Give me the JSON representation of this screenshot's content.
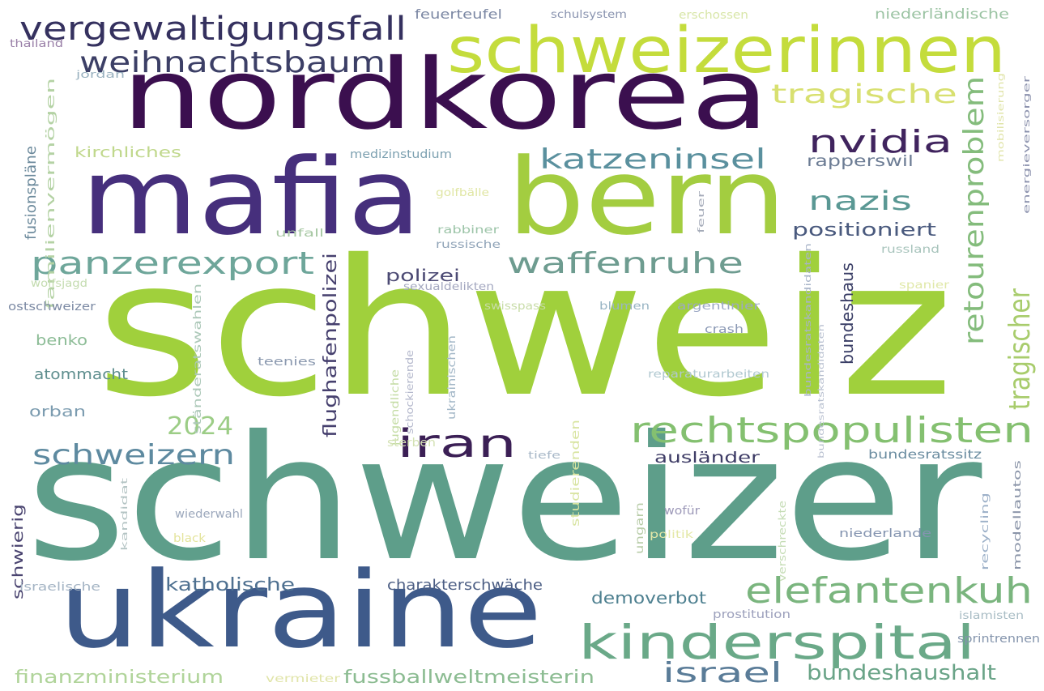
{
  "words": [
    {
      "text": "schweiz",
      "color": "#a0d03c"
    },
    {
      "text": "schweizer",
      "color": "#5e9e8a"
    },
    {
      "text": "nordkorea",
      "color": "#3b0f4f"
    },
    {
      "text": "mafia",
      "color": "#462f7c"
    },
    {
      "text": "bern",
      "color": "#a3cd40"
    },
    {
      "text": "ukraine",
      "color": "#3e5a8a"
    },
    {
      "text": "schweizerinnen",
      "color": "#c4dc3c"
    },
    {
      "text": "kinderspital",
      "color": "#6aa988"
    },
    {
      "text": "vergewaltigungsfall",
      "color": "#35315f"
    },
    {
      "text": "elefantenkuh",
      "color": "#7ab57e"
    },
    {
      "text": "rechtspopulisten",
      "color": "#84c070"
    },
    {
      "text": "weihnachtsbaum",
      "color": "#3c3f66"
    },
    {
      "text": "panzerexport",
      "color": "#6ea69a"
    },
    {
      "text": "waffenruhe",
      "color": "#6e9c90"
    },
    {
      "text": "iran",
      "color": "#3b1f55"
    },
    {
      "text": "schweizern",
      "color": "#5e8aa0"
    },
    {
      "text": "retourenproblem",
      "color": "#84bc7c"
    },
    {
      "text": "tragische",
      "color": "#d8e070"
    },
    {
      "text": "nvidia",
      "color": "#40245e"
    },
    {
      "text": "katzeninsel",
      "color": "#5a909e"
    },
    {
      "text": "nazis",
      "color": "#5a9894"
    },
    {
      "text": "tragischer",
      "color": "#a8cc6c"
    },
    {
      "text": "israel",
      "color": "#5a7c98"
    },
    {
      "text": "bundeshaushalt",
      "color": "#6aa488"
    },
    {
      "text": "2024",
      "color": "#9ccd86"
    },
    {
      "text": "fussballweltmeisterin",
      "color": "#8cbc92"
    },
    {
      "text": "finanzministerium",
      "color": "#b0d49a"
    },
    {
      "text": "katholische",
      "color": "#4e7090"
    },
    {
      "text": "charakterschwäche",
      "color": "#4c5e84"
    },
    {
      "text": "demoverbot",
      "color": "#4e8090"
    },
    {
      "text": "flughafenpolizei",
      "color": "#46406e"
    },
    {
      "text": "bundeshaus",
      "color": "#3a3e66"
    },
    {
      "text": "positioniert",
      "color": "#4a5a7e"
    },
    {
      "text": "polizei",
      "color": "#4c4a74"
    },
    {
      "text": "rapperswil",
      "color": "#6c7c94"
    },
    {
      "text": "ausländer",
      "color": "#3e3c66"
    },
    {
      "text": "kirchliches",
      "color": "#c0d88c"
    },
    {
      "text": "fusionspläne",
      "color": "#6c8a9c"
    },
    {
      "text": "medizinstudium",
      "color": "#7ca0b0"
    },
    {
      "text": "atommacht",
      "color": "#5e8e8e"
    },
    {
      "text": "benko",
      "color": "#8cbc96"
    },
    {
      "text": "orban",
      "color": "#7c9cb0"
    },
    {
      "text": "schwierig",
      "color": "#4a4470"
    },
    {
      "text": "bundesratssitz",
      "color": "#6a8ca0"
    },
    {
      "text": "feuerteufel",
      "color": "#7c88a4"
    },
    {
      "text": "schulsystem",
      "color": "#8a94b0"
    },
    {
      "text": "erschossen",
      "color": "#d8e6a8"
    },
    {
      "text": "niederländische",
      "color": "#9cc4a4"
    },
    {
      "text": "thailand",
      "color": "#9a80a8"
    },
    {
      "text": "jordan",
      "color": "#9ab2c0"
    },
    {
      "text": "familienvermögen",
      "color": "#b4d2a4"
    },
    {
      "text": "golfbälle",
      "color": "#e0e6a4"
    },
    {
      "text": "rabbiner",
      "color": "#9cc4a8"
    },
    {
      "text": "unfall",
      "color": "#a8c8a4"
    },
    {
      "text": "russische",
      "color": "#90a4b8"
    },
    {
      "text": "sexualdelikten",
      "color": "#a4a8c0"
    },
    {
      "text": "feuer",
      "color": "#a4aab8"
    },
    {
      "text": "wolfsjagd",
      "color": "#c4dcb0"
    },
    {
      "text": "ostschweizer",
      "color": "#7c8aa4"
    },
    {
      "text": "swisspass",
      "color": "#c8dca8"
    },
    {
      "text": "blumen",
      "color": "#98b4c4"
    },
    {
      "text": "argentinier",
      "color": "#9ca8c4"
    },
    {
      "text": "russland",
      "color": "#a8c4bc"
    },
    {
      "text": "spanier",
      "color": "#e0e8a8"
    },
    {
      "text": "crash",
      "color": "#8a98b4"
    },
    {
      "text": "teenies",
      "color": "#8c9ab0"
    },
    {
      "text": "reparaturarbeiten",
      "color": "#b0c8d0"
    },
    {
      "text": "ständeratswahlen",
      "color": "#acc8b8"
    },
    {
      "text": "jugendliche",
      "color": "#c4dca4"
    },
    {
      "text": "schockierende",
      "color": "#b4b8cc"
    },
    {
      "text": "ukrainischen",
      "color": "#a4b8c8"
    },
    {
      "text": "sterben",
      "color": "#d4e2b4"
    },
    {
      "text": "tiefe",
      "color": "#a8b8c8"
    },
    {
      "text": "studierenden",
      "color": "#d8e4a0"
    },
    {
      "text": "wofür",
      "color": "#9c98b8"
    },
    {
      "text": "ungarn",
      "color": "#b8cca8"
    },
    {
      "text": "politik",
      "color": "#e4e8a8"
    },
    {
      "text": "wiederwahl",
      "color": "#9ca8bc"
    },
    {
      "text": "black",
      "color": "#e4e49c"
    },
    {
      "text": "kandidat",
      "color": "#b4c4c4"
    },
    {
      "text": "verschreckte",
      "color": "#c4dcb4"
    },
    {
      "text": "niederlande",
      "color": "#8494b0"
    },
    {
      "text": "israelische",
      "color": "#a4b4c4"
    },
    {
      "text": "prostitution",
      "color": "#9ca0bc"
    },
    {
      "text": "islamisten",
      "color": "#a8bcc4"
    },
    {
      "text": "sprintrennen",
      "color": "#8494ac"
    },
    {
      "text": "vermieter",
      "color": "#e0e4a8"
    },
    {
      "text": "recycling",
      "color": "#9cb0c8"
    },
    {
      "text": "modellautos",
      "color": "#8a94a8"
    },
    {
      "text": "mobilisierung",
      "color": "#e0e4a8"
    },
    {
      "text": "energieversorger",
      "color": "#8a90ac"
    },
    {
      "text": "bundesratskandidaten",
      "color": "#a8b4c8"
    },
    {
      "text": "bundesratskandidaten",
      "color": "#b8c0d0"
    }
  ]
}
